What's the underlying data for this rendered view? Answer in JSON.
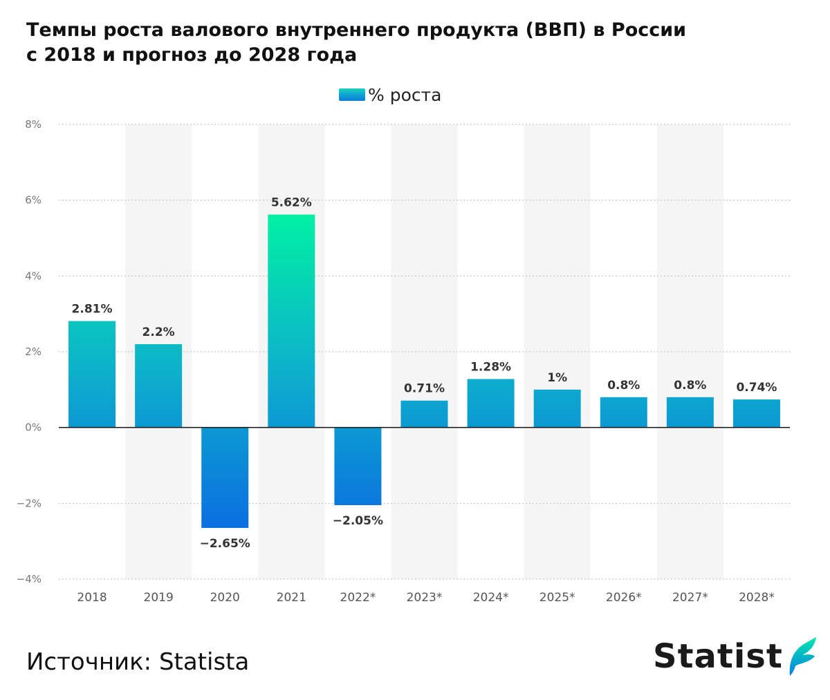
{
  "title_lines": [
    "Темпы роста валового внутреннего продукта (ВВП) в России",
    "с 2018 и прогноз до 2028 года"
  ],
  "legend": {
    "label": "% роста"
  },
  "source": "Источник: Statista",
  "logo": {
    "text": "Statist"
  },
  "colors": {
    "bar_top_high": "#00e8a8",
    "bar_mid": "#0eb6c9",
    "bar_bottom": "#0a78dc",
    "grid": "#cccccc",
    "band": "#f5f5f5",
    "zero": "#111111"
  },
  "chart_data": {
    "type": "bar",
    "title": "Темпы роста валового внутреннего продукта (ВВП) в России с 2018 и прогноз до 2028 года",
    "xlabel": "",
    "ylabel": "",
    "categories": [
      "2018",
      "2019",
      "2020",
      "2021",
      "2022*",
      "2023*",
      "2024*",
      "2025*",
      "2026*",
      "2027*",
      "2028*"
    ],
    "series": [
      {
        "name": "% роста",
        "values": [
          2.81,
          2.2,
          -2.65,
          5.62,
          -2.05,
          0.71,
          1.28,
          1,
          0.8,
          0.8,
          0.74
        ],
        "value_labels": [
          "2.81%",
          "2.2%",
          "−2.65%",
          "5.62%",
          "−2.05%",
          "0.71%",
          "1.28%",
          "1%",
          "0.8%",
          "0.8%",
          "0.74%"
        ]
      }
    ],
    "ylim": [
      -4,
      8
    ],
    "yticks": [
      8,
      6,
      4,
      2,
      0,
      -2,
      -4
    ],
    "ytick_labels": [
      "8%",
      "6%",
      "4%",
      "2%",
      "0%",
      "−2%",
      "−4%"
    ],
    "grid": true,
    "legend_position": "top-center"
  }
}
